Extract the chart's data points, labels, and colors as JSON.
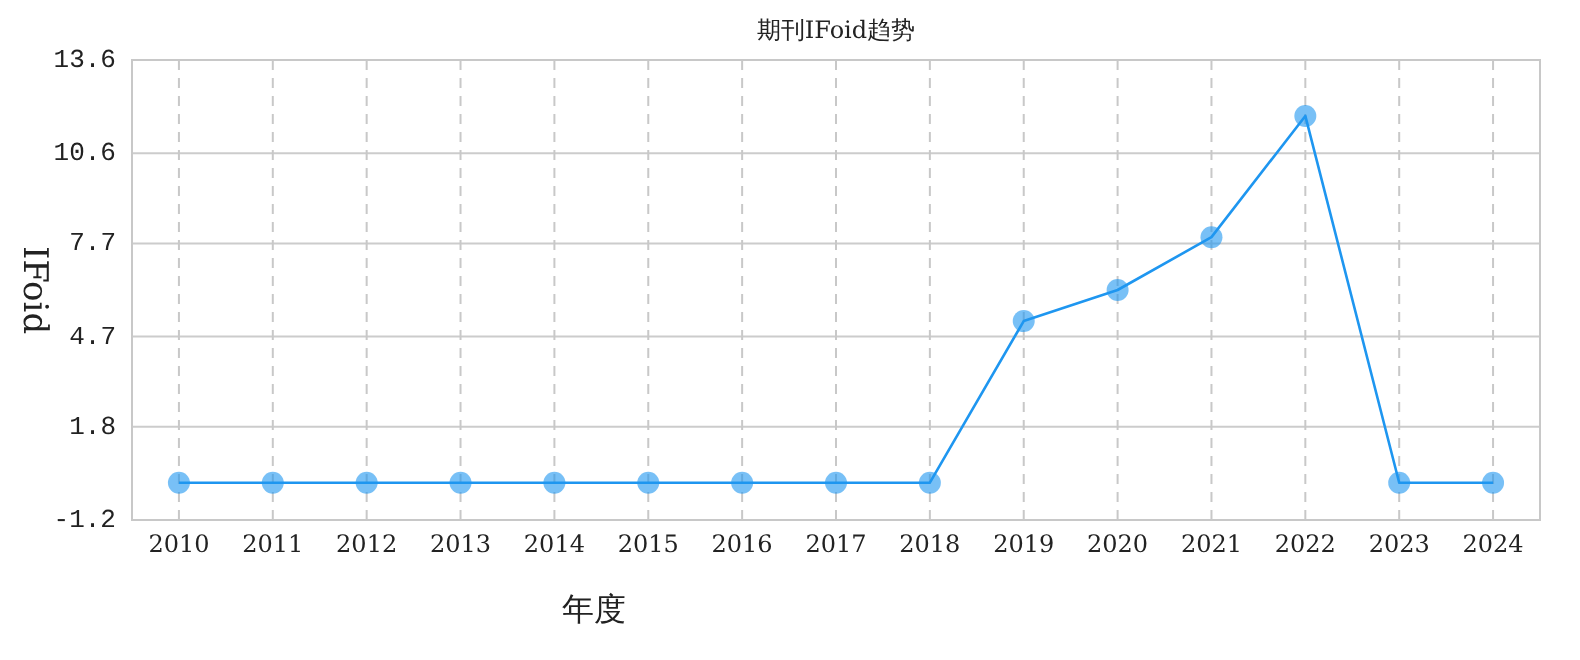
{
  "chart_data": {
    "type": "line",
    "title": "期刊IFoid趋势",
    "xlabel": "年度",
    "ylabel": "IFoid",
    "categories": [
      "2010",
      "2011",
      "2012",
      "2013",
      "2014",
      "2015",
      "2016",
      "2017",
      "2018",
      "2019",
      "2020",
      "2021",
      "2022",
      "2023",
      "2024"
    ],
    "series": [
      {
        "color": "#1e96f0",
        "values": [
          0,
          0,
          0,
          0,
          0,
          0,
          0,
          0,
          0,
          5.2,
          6.2,
          7.9,
          11.8,
          0,
          0
        ]
      }
    ],
    "ylim": [
      -1.2,
      13.6
    ],
    "yticks": [
      -1.2,
      1.8,
      4.7,
      7.7,
      10.6,
      13.6
    ],
    "grid": true,
    "marker": "circle",
    "line_style": "solid"
  }
}
